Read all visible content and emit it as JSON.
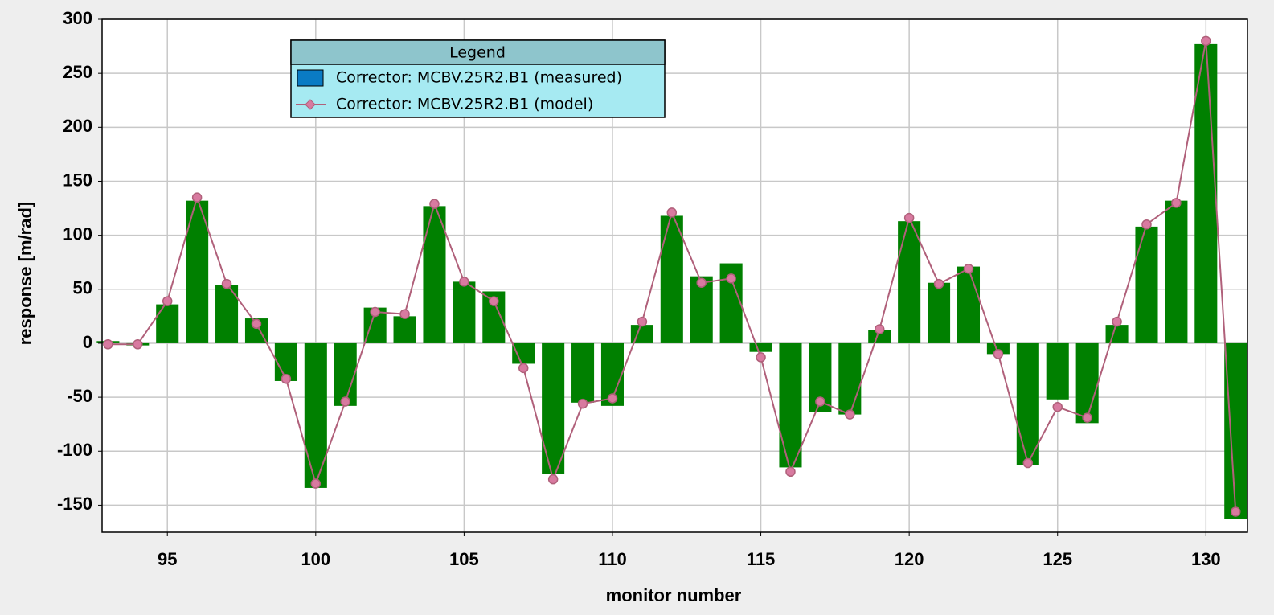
{
  "chart_data": {
    "type": "bar_line",
    "x_label": "monitor number",
    "y_label": "response [m/rad]",
    "legend_title": "Legend",
    "x": [
      93,
      94,
      95,
      96,
      97,
      98,
      99,
      100,
      101,
      102,
      103,
      104,
      105,
      106,
      107,
      108,
      109,
      110,
      111,
      112,
      113,
      114,
      115,
      116,
      117,
      118,
      119,
      120,
      121,
      122,
      123,
      124,
      125,
      126,
      127,
      128,
      129,
      130,
      131
    ],
    "series": [
      {
        "name": "Corrector: MCBV.25R2.B1 (measured)",
        "kind": "bar",
        "color": "#008000",
        "legend_color": "#0a7bc4",
        "values": [
          2,
          -2,
          36,
          132,
          54,
          23,
          -35,
          -134,
          -58,
          33,
          25,
          127,
          57,
          48,
          -19,
          -121,
          -55,
          -58,
          17,
          118,
          62,
          74,
          -8,
          -115,
          -64,
          -66,
          12,
          113,
          56,
          71,
          -10,
          -113,
          -52,
          -74,
          17,
          108,
          132,
          277,
          -163
        ]
      },
      {
        "name": "Corrector: MCBV.25R2.B1 (model)",
        "kind": "line",
        "color": "#b0607a",
        "marker_color": "#d87aa0",
        "values": [
          -1,
          -1,
          39,
          135,
          55,
          18,
          -33,
          -130,
          -54,
          29,
          27,
          129,
          57,
          39,
          -23,
          -126,
          -56,
          -51,
          20,
          121,
          56,
          60,
          -13,
          -119,
          -54,
          -66,
          13,
          116,
          55,
          69,
          -10,
          -111,
          -59,
          -69,
          20,
          110,
          130,
          280,
          -156
        ]
      }
    ],
    "xlim": [
      92.8,
      131.4
    ],
    "xticks": [
      95,
      100,
      105,
      110,
      115,
      120,
      125,
      130
    ],
    "ylim": [
      -175,
      300
    ],
    "yticks": [
      -150,
      -100,
      -50,
      0,
      50,
      100,
      150,
      200,
      250,
      300
    ],
    "grid": true
  }
}
